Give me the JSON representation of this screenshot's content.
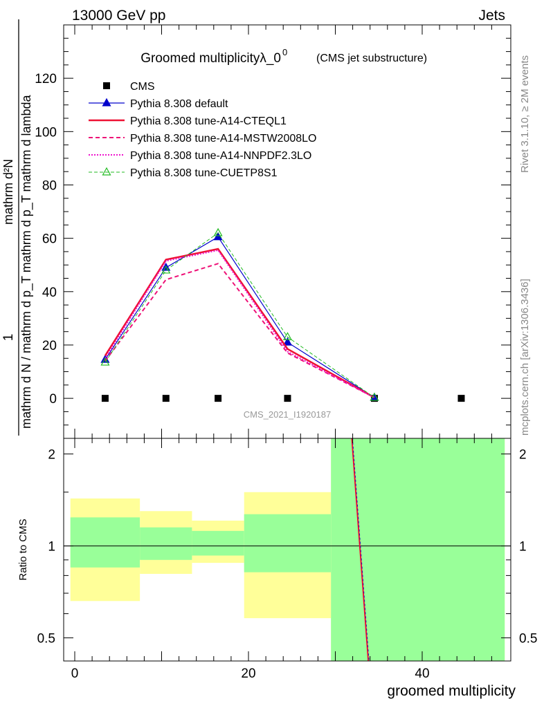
{
  "header": {
    "left": "13000 GeV pp",
    "right": "Jets"
  },
  "side_labels": {
    "rivet": "Rivet 3.1.10, ≥ 2M events",
    "mcplots": "mcplots.cern.ch [arXiv:1306.3436]"
  },
  "chart_data": [
    {
      "type": "line",
      "title": "Groomed multiplicityλ_0",
      "title_superscript": "0",
      "subtitle": "(CMS jet substructure)",
      "ylabel_numerator": "mathrm d²N",
      "ylabel_denominator": "mathrm d N / mathrm d p_T mathrm d p_T mathrm d lambda",
      "ylabel_prefix": "1",
      "watermark": "CMS_2021_I1920187",
      "xlim": [
        -1,
        50
      ],
      "ylim": [
        -15,
        140
      ],
      "yticks": [
        0,
        20,
        40,
        60,
        80,
        100,
        120
      ],
      "grid": false,
      "legend_position": "top-left",
      "series": [
        {
          "name": "CMS",
          "x": [
            3.5,
            10.5,
            16.5,
            24.5,
            34.5,
            44.5
          ],
          "values": [
            0,
            0,
            0,
            0,
            0,
            0
          ],
          "color": "#000000",
          "style": "markers-square"
        },
        {
          "name": "Pythia 8.308 default",
          "x": [
            3.5,
            10.5,
            16.5,
            24.5,
            34.5
          ],
          "values": [
            14.5,
            49,
            60.5,
            21,
            0.3
          ],
          "color": "#0000cc",
          "style": "solid-triangle"
        },
        {
          "name": "Pythia 8.308 tune-A14-CTEQL1",
          "x": [
            3.5,
            10.5,
            16.5,
            24.5,
            34.5
          ],
          "values": [
            16,
            52,
            56,
            18.5,
            0.3
          ],
          "color": "#ee1133",
          "style": "solid-thick"
        },
        {
          "name": "Pythia 8.308 tune-A14-MSTW2008LO",
          "x": [
            3.5,
            10.5,
            16.5,
            24.5,
            34.5
          ],
          "values": [
            14,
            44.5,
            50.5,
            17,
            0.3
          ],
          "color": "#ee1177",
          "style": "dashed"
        },
        {
          "name": "Pythia 8.308 tune-A14-NNPDF2.3LO",
          "x": [
            3.5,
            10.5,
            16.5,
            24.5,
            34.5
          ],
          "values": [
            15,
            51.5,
            55.5,
            17.5,
            0.3
          ],
          "color": "#ee11cc",
          "style": "dotted"
        },
        {
          "name": "Pythia 8.308 tune-CUETP8S1",
          "x": [
            3.5,
            10.5,
            16.5,
            24.5,
            34.5
          ],
          "values": [
            13.5,
            48,
            62,
            23,
            0.3
          ],
          "color": "#22bb22",
          "style": "dashed-open-triangle"
        }
      ]
    },
    {
      "type": "area",
      "ylabel": "Ratio to CMS",
      "xlabel": "groomed multiplicity",
      "xlim": [
        -1,
        50
      ],
      "ylim": [
        0.42,
        2.25
      ],
      "yticks": [
        0.5,
        1,
        2
      ],
      "xticks": [
        0,
        20,
        40
      ],
      "reference": 1,
      "bands": [
        {
          "x": [
            -0.5,
            7.5
          ],
          "yellow": [
            0.66,
            1.43
          ],
          "green": [
            0.85,
            1.24
          ]
        },
        {
          "x": [
            7.5,
            13.5
          ],
          "yellow": [
            0.81,
            1.3
          ],
          "green": [
            0.9,
            1.15
          ]
        },
        {
          "x": [
            13.5,
            19.5
          ],
          "yellow": [
            0.88,
            1.21
          ],
          "green": [
            0.93,
            1.12
          ]
        },
        {
          "x": [
            19.5,
            29.5
          ],
          "yellow": [
            0.58,
            1.5
          ],
          "green": [
            0.82,
            1.27
          ]
        },
        {
          "x": [
            29.5,
            49.5
          ],
          "yellow": [
            0.42,
            2.25
          ],
          "green": [
            0.42,
            2.25
          ]
        }
      ],
      "ratio_line": {
        "x": [
          31.9,
          33.8
        ],
        "values": [
          2.25,
          0.42
        ],
        "color": "#ee1133"
      }
    }
  ]
}
